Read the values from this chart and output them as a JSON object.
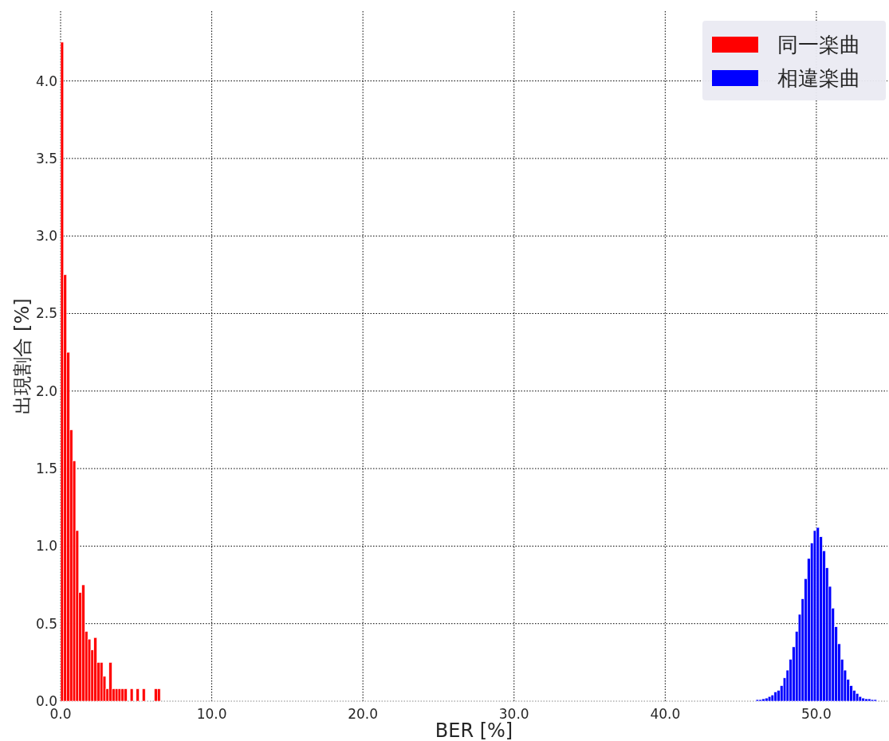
{
  "chart_data": {
    "type": "histogram",
    "xlabel": "BER [%]",
    "ylabel": "出現割合 [%]",
    "xlim": [
      0,
      54.7
    ],
    "ylim": [
      0,
      4.45
    ],
    "xticks": [
      {
        "value": 0,
        "label": "0.0"
      },
      {
        "value": 10,
        "label": "10.0"
      },
      {
        "value": 20,
        "label": "20.0"
      },
      {
        "value": 30,
        "label": "30.0"
      },
      {
        "value": 40,
        "label": "40.0"
      },
      {
        "value": 50,
        "label": "50.0"
      }
    ],
    "yticks": [
      {
        "value": 0,
        "label": "0.0"
      },
      {
        "value": 0.5,
        "label": "0.5"
      },
      {
        "value": 1,
        "label": "1.0"
      },
      {
        "value": 1.5,
        "label": "1.5"
      },
      {
        "value": 2,
        "label": "2.0"
      },
      {
        "value": 2.5,
        "label": "2.5"
      },
      {
        "value": 3,
        "label": "3.0"
      },
      {
        "value": 3.5,
        "label": "3.5"
      },
      {
        "value": 4,
        "label": "4.0"
      }
    ],
    "grid": true,
    "legend": "top right",
    "bins": [
      0,
      0.2,
      0.4,
      0.6,
      0.8,
      1.0,
      1.2,
      1.4,
      1.6,
      1.8,
      2.0,
      2.2,
      2.4,
      2.6,
      2.8,
      3.0,
      3.2,
      3.4,
      3.6,
      3.8,
      4.0,
      4.2,
      4.4,
      4.6,
      4.8,
      5.0,
      5.2,
      5.4,
      5.6,
      6.2,
      6.4,
      6.6,
      46.0,
      46.2,
      46.4,
      46.6,
      46.8,
      47.0,
      47.2,
      47.4,
      47.6,
      47.8,
      48.0,
      48.2,
      48.4,
      48.6,
      48.8,
      49.0,
      49.2,
      49.4,
      49.6,
      49.8,
      50.0,
      50.2,
      50.4,
      50.6,
      50.8,
      51.0,
      51.2,
      51.4,
      51.6,
      51.8,
      52.0,
      52.2,
      52.4,
      52.6,
      52.8,
      53.0,
      53.2,
      53.4,
      53.6,
      53.8,
      54.0
    ],
    "series": [
      {
        "name": "同一楽曲",
        "color": "#ff0000",
        "values": [
          4.25,
          2.75,
          2.25,
          1.75,
          1.55,
          1.1,
          0.7,
          0.75,
          0.45,
          0.4,
          0.33,
          0.41,
          0.25,
          0.25,
          0.16,
          0.08,
          0.25,
          0.08,
          0.08,
          0.08,
          0.08,
          0.08,
          0,
          0.08,
          0,
          0.08,
          0,
          0.08,
          0,
          0.08,
          0.08,
          null,
          null,
          null,
          null,
          null,
          null,
          null,
          null,
          null,
          null,
          null,
          null,
          null,
          null,
          null,
          null,
          null,
          null,
          null,
          null,
          null,
          null,
          null,
          null,
          null,
          null,
          null,
          null,
          null,
          null,
          null,
          null,
          null,
          null,
          null,
          null,
          null,
          null,
          null,
          null,
          null
        ]
      },
      {
        "name": "相違楽曲",
        "color": "#0000ff",
        "values": [
          null,
          null,
          null,
          null,
          null,
          null,
          null,
          null,
          null,
          null,
          null,
          null,
          null,
          null,
          null,
          null,
          null,
          null,
          null,
          null,
          null,
          null,
          null,
          null,
          null,
          null,
          null,
          null,
          null,
          null,
          null,
          null,
          0.01,
          0.01,
          0.015,
          0.02,
          0.03,
          0.04,
          0.06,
          0.07,
          0.1,
          0.15,
          0.2,
          0.27,
          0.35,
          0.45,
          0.56,
          0.66,
          0.79,
          0.92,
          1.02,
          1.1,
          1.12,
          1.06,
          0.97,
          0.86,
          0.74,
          0.6,
          0.48,
          0.37,
          0.27,
          0.2,
          0.14,
          0.1,
          0.07,
          0.05,
          0.03,
          0.02,
          0.015,
          0.015,
          0.01,
          0.01
        ]
      }
    ]
  }
}
